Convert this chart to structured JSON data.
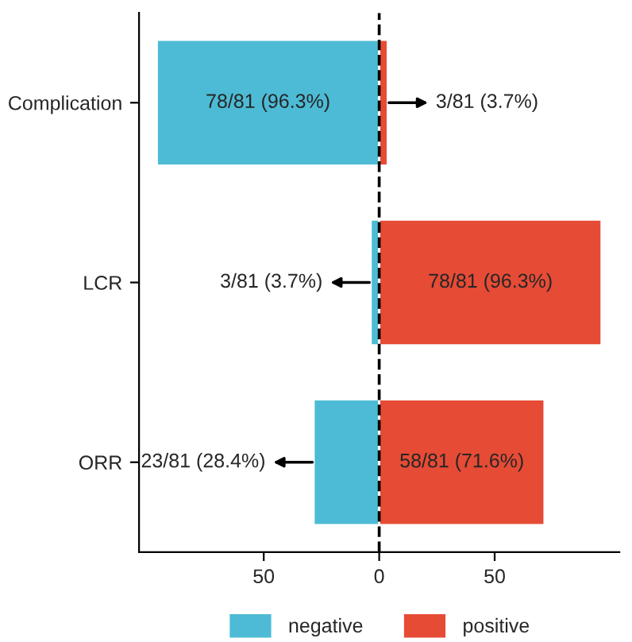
{
  "chart_data": {
    "type": "bar",
    "orientation": "horizontal",
    "categories": [
      "Complication",
      "LCR",
      "ORR"
    ],
    "series": [
      {
        "name": "negative",
        "color": "#4dbbd5",
        "values": [
          96.3,
          3.7,
          28.4
        ],
        "base": [
          -96.3,
          -3.7,
          -28.4
        ],
        "value_labels": [
          "78/81 (96.3%)",
          "3/81 (3.7%)",
          "23/81 (28.4%)"
        ]
      },
      {
        "name": "positive",
        "color": "#e64b35",
        "values": [
          3.7,
          96.3,
          71.6
        ],
        "value_labels": [
          "3/81 (3.7%)",
          "78/81 (96.3%)",
          "58/81 (71.6%)"
        ]
      }
    ],
    "xlim": [
      -104,
      104
    ],
    "xticks": [
      {
        "value": -50,
        "label": "50"
      },
      0,
      50
    ],
    "ref_lines": [
      {
        "axis": "x",
        "value": 0,
        "line_style": "dashed",
        "color": "#000000"
      }
    ],
    "grid": false,
    "legend": "bottom"
  }
}
